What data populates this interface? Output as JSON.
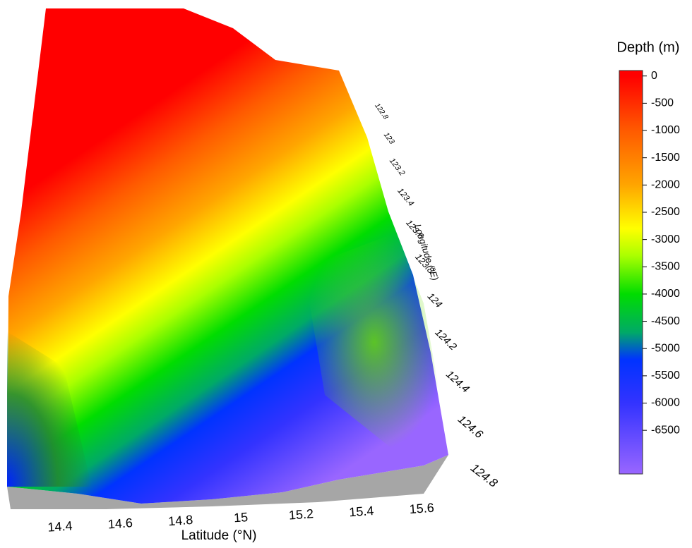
{
  "chart_data": {
    "type": "surface3d",
    "xlabel": "Latitude (°N)",
    "ylabel": "Longitude (°E)",
    "colorbar_title": "Depth (m)",
    "xlim": [
      14.25,
      15.7
    ],
    "xticks": [
      14.4,
      14.6,
      14.8,
      15,
      15.2,
      15.4,
      15.6
    ],
    "ylim": [
      122.8,
      124.8
    ],
    "yticks": [
      122.8,
      123,
      123.2,
      123.4,
      123.6,
      123.8,
      124,
      124.2,
      124.4,
      124.6,
      124.8
    ],
    "clim": [
      -7300,
      100
    ],
    "cticks": [
      0,
      -500,
      -1000,
      -1500,
      -2000,
      -2500,
      -3000,
      -3500,
      -4000,
      -4500,
      -5000,
      -5500,
      -6000,
      -6500
    ],
    "colorscale": [
      {
        "value": 0,
        "color": "#ff0000"
      },
      {
        "value": -1000,
        "color": "#ff5a00"
      },
      {
        "value": -2000,
        "color": "#ffa500"
      },
      {
        "value": -2800,
        "color": "#ffff00"
      },
      {
        "value": -3300,
        "color": "#aaff00"
      },
      {
        "value": -4000,
        "color": "#00dd00"
      },
      {
        "value": -4700,
        "color": "#00aa66"
      },
      {
        "value": -5200,
        "color": "#0033ff"
      },
      {
        "value": -6000,
        "color": "#3333ff"
      },
      {
        "value": -7300,
        "color": "#9966ff"
      }
    ]
  }
}
